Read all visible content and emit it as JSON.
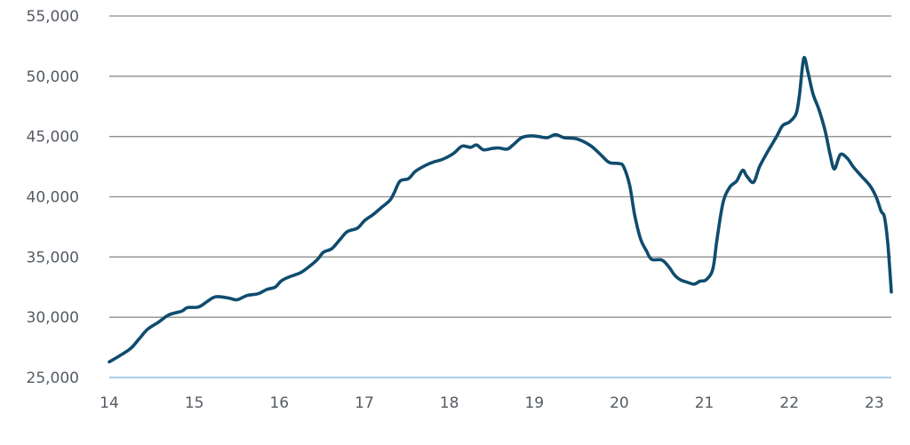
{
  "chart_data": {
    "type": "line",
    "title": "",
    "xlabel": "",
    "ylabel": "",
    "xlim": [
      14,
      23.2
    ],
    "ylim": [
      25000,
      55000
    ],
    "grid": true,
    "colors": {
      "line": "#0f4c6e",
      "grid": "#8e8e8e",
      "baseline": "#aacde6",
      "axis_text": "#555b63"
    },
    "x_ticks": [
      {
        "value": 14,
        "label": "14"
      },
      {
        "value": 15,
        "label": "15"
      },
      {
        "value": 16,
        "label": "16"
      },
      {
        "value": 17,
        "label": "17"
      },
      {
        "value": 18,
        "label": "18"
      },
      {
        "value": 19,
        "label": "19"
      },
      {
        "value": 20,
        "label": "20"
      },
      {
        "value": 21,
        "label": "21"
      },
      {
        "value": 22,
        "label": "22"
      },
      {
        "value": 23,
        "label": "23"
      }
    ],
    "y_ticks": [
      {
        "value": 25000,
        "label": "25,000"
      },
      {
        "value": 30000,
        "label": "30,000"
      },
      {
        "value": 35000,
        "label": "35,000"
      },
      {
        "value": 40000,
        "label": "40,000"
      },
      {
        "value": 45000,
        "label": "45,000"
      },
      {
        "value": 50000,
        "label": "50,000"
      },
      {
        "value": 55000,
        "label": "55,000"
      }
    ],
    "series": [
      {
        "points": [
          [
            14.0,
            26300
          ],
          [
            14.12,
            26800
          ],
          [
            14.25,
            27400
          ],
          [
            14.35,
            28200
          ],
          [
            14.45,
            29000
          ],
          [
            14.58,
            29600
          ],
          [
            14.7,
            30200
          ],
          [
            14.85,
            30500
          ],
          [
            14.92,
            30800
          ],
          [
            15.05,
            30850
          ],
          [
            15.15,
            31300
          ],
          [
            15.25,
            31700
          ],
          [
            15.4,
            31600
          ],
          [
            15.5,
            31450
          ],
          [
            15.62,
            31800
          ],
          [
            15.75,
            31950
          ],
          [
            15.85,
            32300
          ],
          [
            15.95,
            32500
          ],
          [
            16.02,
            33000
          ],
          [
            16.1,
            33300
          ],
          [
            16.25,
            33700
          ],
          [
            16.35,
            34200
          ],
          [
            16.45,
            34800
          ],
          [
            16.52,
            35400
          ],
          [
            16.62,
            35700
          ],
          [
            16.72,
            36500
          ],
          [
            16.8,
            37100
          ],
          [
            16.92,
            37400
          ],
          [
            17.0,
            38000
          ],
          [
            17.1,
            38500
          ],
          [
            17.2,
            39100
          ],
          [
            17.3,
            39700
          ],
          [
            17.35,
            40300
          ],
          [
            17.42,
            41300
          ],
          [
            17.52,
            41500
          ],
          [
            17.6,
            42100
          ],
          [
            17.72,
            42600
          ],
          [
            17.82,
            42900
          ],
          [
            17.92,
            43100
          ],
          [
            18.05,
            43600
          ],
          [
            18.15,
            44200
          ],
          [
            18.25,
            44100
          ],
          [
            18.32,
            44300
          ],
          [
            18.4,
            43900
          ],
          [
            18.5,
            44000
          ],
          [
            18.58,
            44050
          ],
          [
            18.68,
            43950
          ],
          [
            18.75,
            44300
          ],
          [
            18.85,
            44900
          ],
          [
            18.95,
            45050
          ],
          [
            19.05,
            45000
          ],
          [
            19.15,
            44900
          ],
          [
            19.25,
            45150
          ],
          [
            19.35,
            44900
          ],
          [
            19.5,
            44800
          ],
          [
            19.65,
            44300
          ],
          [
            19.75,
            43700
          ],
          [
            19.85,
            43000
          ],
          [
            19.9,
            42800
          ],
          [
            20.0,
            42750
          ],
          [
            20.05,
            42500
          ],
          [
            20.12,
            41000
          ],
          [
            20.18,
            38500
          ],
          [
            20.25,
            36500
          ],
          [
            20.32,
            35500
          ],
          [
            20.38,
            34800
          ],
          [
            20.5,
            34750
          ],
          [
            20.58,
            34200
          ],
          [
            20.65,
            33500
          ],
          [
            20.72,
            33100
          ],
          [
            20.8,
            32900
          ],
          [
            20.88,
            32750
          ],
          [
            20.95,
            33000
          ],
          [
            21.02,
            33100
          ],
          [
            21.1,
            34000
          ],
          [
            21.15,
            36500
          ],
          [
            21.22,
            39500
          ],
          [
            21.3,
            40800
          ],
          [
            21.38,
            41300
          ],
          [
            21.45,
            42200
          ],
          [
            21.5,
            41700
          ],
          [
            21.58,
            41200
          ],
          [
            21.65,
            42500
          ],
          [
            21.75,
            43800
          ],
          [
            21.85,
            45000
          ],
          [
            21.92,
            45900
          ],
          [
            22.0,
            46200
          ],
          [
            22.08,
            46900
          ],
          [
            22.12,
            48500
          ],
          [
            22.17,
            51500
          ],
          [
            22.22,
            50300
          ],
          [
            22.28,
            48500
          ],
          [
            22.35,
            47200
          ],
          [
            22.42,
            45500
          ],
          [
            22.48,
            43500
          ],
          [
            22.53,
            42300
          ],
          [
            22.6,
            43500
          ],
          [
            22.68,
            43200
          ],
          [
            22.75,
            42500
          ],
          [
            22.85,
            41700
          ],
          [
            22.95,
            40900
          ],
          [
            23.02,
            40000
          ],
          [
            23.08,
            38800
          ],
          [
            23.12,
            38300
          ],
          [
            23.16,
            36000
          ],
          [
            23.2,
            32100
          ]
        ]
      }
    ]
  }
}
